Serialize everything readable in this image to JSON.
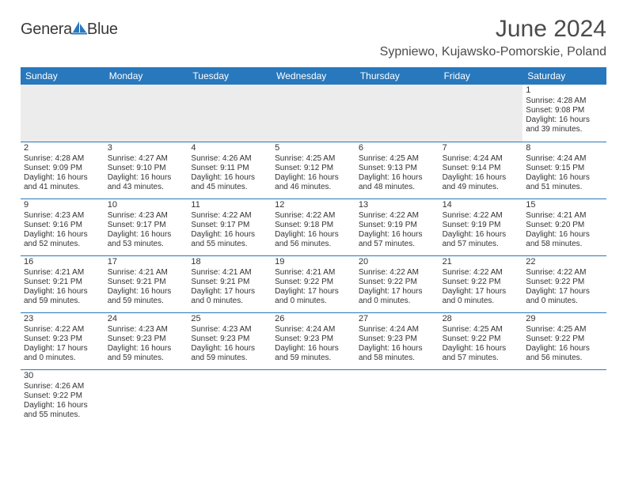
{
  "logo": {
    "text1": "Genera",
    "text2": "Blue"
  },
  "title": "June 2024",
  "location": "Sypniewo, Kujawsko-Pomorskie, Poland",
  "colors": {
    "header_bg": "#2878bd",
    "header_text": "#ffffff",
    "empty_bg": "#ececec",
    "row_divider": "#2878bd",
    "text": "#333333",
    "title_text": "#4b4b4b",
    "logo_gray": "#3a3a3a",
    "logo_blue": "#2878bd",
    "page_bg": "#ffffff"
  },
  "weekdays": [
    "Sunday",
    "Monday",
    "Tuesday",
    "Wednesday",
    "Thursday",
    "Friday",
    "Saturday"
  ],
  "leading_empty": 6,
  "days": [
    {
      "n": 1,
      "sunrise": "4:28 AM",
      "sunset": "9:08 PM",
      "daylight": "16 hours and 39 minutes."
    },
    {
      "n": 2,
      "sunrise": "4:28 AM",
      "sunset": "9:09 PM",
      "daylight": "16 hours and 41 minutes."
    },
    {
      "n": 3,
      "sunrise": "4:27 AM",
      "sunset": "9:10 PM",
      "daylight": "16 hours and 43 minutes."
    },
    {
      "n": 4,
      "sunrise": "4:26 AM",
      "sunset": "9:11 PM",
      "daylight": "16 hours and 45 minutes."
    },
    {
      "n": 5,
      "sunrise": "4:25 AM",
      "sunset": "9:12 PM",
      "daylight": "16 hours and 46 minutes."
    },
    {
      "n": 6,
      "sunrise": "4:25 AM",
      "sunset": "9:13 PM",
      "daylight": "16 hours and 48 minutes."
    },
    {
      "n": 7,
      "sunrise": "4:24 AM",
      "sunset": "9:14 PM",
      "daylight": "16 hours and 49 minutes."
    },
    {
      "n": 8,
      "sunrise": "4:24 AM",
      "sunset": "9:15 PM",
      "daylight": "16 hours and 51 minutes."
    },
    {
      "n": 9,
      "sunrise": "4:23 AM",
      "sunset": "9:16 PM",
      "daylight": "16 hours and 52 minutes."
    },
    {
      "n": 10,
      "sunrise": "4:23 AM",
      "sunset": "9:17 PM",
      "daylight": "16 hours and 53 minutes."
    },
    {
      "n": 11,
      "sunrise": "4:22 AM",
      "sunset": "9:17 PM",
      "daylight": "16 hours and 55 minutes."
    },
    {
      "n": 12,
      "sunrise": "4:22 AM",
      "sunset": "9:18 PM",
      "daylight": "16 hours and 56 minutes."
    },
    {
      "n": 13,
      "sunrise": "4:22 AM",
      "sunset": "9:19 PM",
      "daylight": "16 hours and 57 minutes."
    },
    {
      "n": 14,
      "sunrise": "4:22 AM",
      "sunset": "9:19 PM",
      "daylight": "16 hours and 57 minutes."
    },
    {
      "n": 15,
      "sunrise": "4:21 AM",
      "sunset": "9:20 PM",
      "daylight": "16 hours and 58 minutes."
    },
    {
      "n": 16,
      "sunrise": "4:21 AM",
      "sunset": "9:21 PM",
      "daylight": "16 hours and 59 minutes."
    },
    {
      "n": 17,
      "sunrise": "4:21 AM",
      "sunset": "9:21 PM",
      "daylight": "16 hours and 59 minutes."
    },
    {
      "n": 18,
      "sunrise": "4:21 AM",
      "sunset": "9:21 PM",
      "daylight": "17 hours and 0 minutes."
    },
    {
      "n": 19,
      "sunrise": "4:21 AM",
      "sunset": "9:22 PM",
      "daylight": "17 hours and 0 minutes."
    },
    {
      "n": 20,
      "sunrise": "4:22 AM",
      "sunset": "9:22 PM",
      "daylight": "17 hours and 0 minutes."
    },
    {
      "n": 21,
      "sunrise": "4:22 AM",
      "sunset": "9:22 PM",
      "daylight": "17 hours and 0 minutes."
    },
    {
      "n": 22,
      "sunrise": "4:22 AM",
      "sunset": "9:22 PM",
      "daylight": "17 hours and 0 minutes."
    },
    {
      "n": 23,
      "sunrise": "4:22 AM",
      "sunset": "9:23 PM",
      "daylight": "17 hours and 0 minutes."
    },
    {
      "n": 24,
      "sunrise": "4:23 AM",
      "sunset": "9:23 PM",
      "daylight": "16 hours and 59 minutes."
    },
    {
      "n": 25,
      "sunrise": "4:23 AM",
      "sunset": "9:23 PM",
      "daylight": "16 hours and 59 minutes."
    },
    {
      "n": 26,
      "sunrise": "4:24 AM",
      "sunset": "9:23 PM",
      "daylight": "16 hours and 59 minutes."
    },
    {
      "n": 27,
      "sunrise": "4:24 AM",
      "sunset": "9:23 PM",
      "daylight": "16 hours and 58 minutes."
    },
    {
      "n": 28,
      "sunrise": "4:25 AM",
      "sunset": "9:22 PM",
      "daylight": "16 hours and 57 minutes."
    },
    {
      "n": 29,
      "sunrise": "4:25 AM",
      "sunset": "9:22 PM",
      "daylight": "16 hours and 56 minutes."
    },
    {
      "n": 30,
      "sunrise": "4:26 AM",
      "sunset": "9:22 PM",
      "daylight": "16 hours and 55 minutes."
    }
  ],
  "labels": {
    "sunrise": "Sunrise:",
    "sunset": "Sunset:",
    "daylight": "Daylight:"
  }
}
